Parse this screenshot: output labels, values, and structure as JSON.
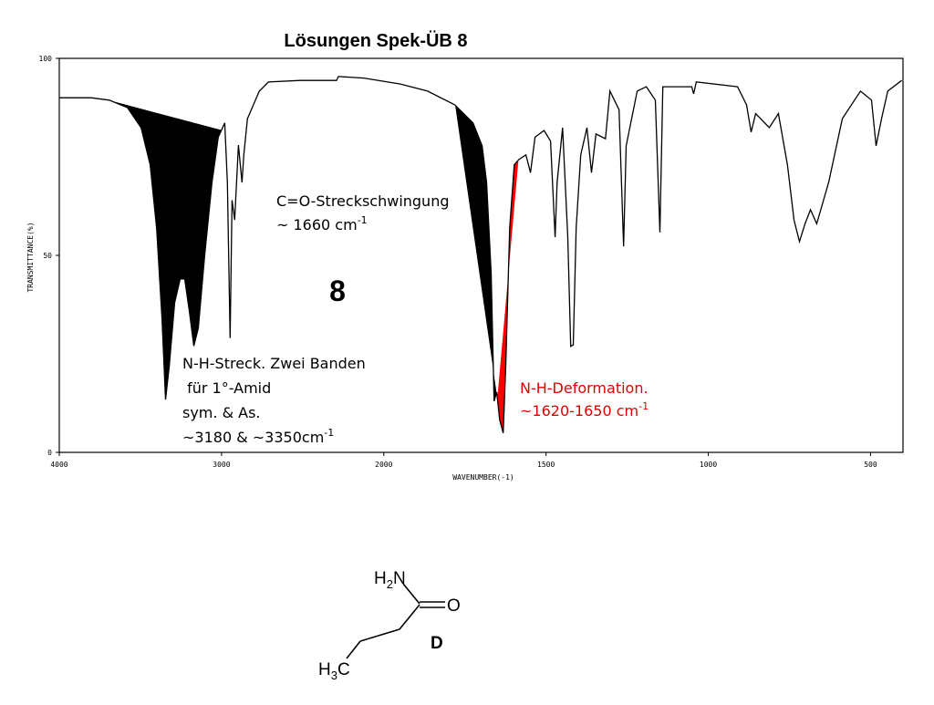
{
  "chart_data": {
    "type": "line",
    "title": "Lösungen Spek-ÜB 8",
    "xlabel": "WAVENUMBER(-1)",
    "ylabel": "TRANSMITTANCE(%)",
    "big_label": "8",
    "xlim": [
      4000,
      400
    ],
    "xticks": [
      4000,
      3000,
      2000,
      1500,
      1000,
      500
    ],
    "ylim": [
      0,
      100
    ],
    "yticks": [
      0,
      50,
      100
    ],
    "grid": false,
    "color": "#000000",
    "x": [
      4000,
      3804,
      3692,
      3580,
      3496,
      3440,
      3400,
      3367,
      3345,
      3322,
      3289,
      3255,
      3227,
      3199,
      3171,
      3143,
      3104,
      3059,
      3020,
      2980,
      2964,
      2947,
      2935,
      2919,
      2896,
      2874,
      2863,
      2840,
      2767,
      2711,
      2515,
      2291,
      2280,
      2123,
      1949,
      1865,
      1781,
      1725,
      1697,
      1683,
      1669,
      1660,
      1652,
      1643,
      1632,
      1624,
      1612,
      1598,
      1584,
      1562,
      1548,
      1534,
      1506,
      1486,
      1472,
      1466,
      1449,
      1433,
      1424,
      1416,
      1407,
      1393,
      1374,
      1360,
      1346,
      1317,
      1303,
      1275,
      1261,
      1253,
      1219,
      1191,
      1163,
      1149,
      1140,
      1051,
      1045,
      1037,
      910,
      882,
      868,
      854,
      812,
      784,
      756,
      736,
      719,
      702,
      685,
      666,
      629,
      587,
      531,
      497,
      483,
      466,
      447,
      404
    ],
    "values": [
      90,
      90,
      89.4,
      87.5,
      82.4,
      73,
      57,
      34,
      13.4,
      22,
      38,
      44,
      44,
      36,
      27,
      31.5,
      50,
      68.5,
      80,
      83.6,
      68.5,
      29,
      64,
      59,
      78,
      68.5,
      75.5,
      84.7,
      91.7,
      94,
      94.4,
      94.4,
      95.4,
      95,
      93.5,
      91.7,
      88.2,
      83.6,
      77.8,
      68.5,
      45.4,
      13,
      15.3,
      8.3,
      4.9,
      22,
      57,
      73,
      74.3,
      75.5,
      71,
      80,
      81.7,
      79,
      54.6,
      68.5,
      82.4,
      54.6,
      26.9,
      27.3,
      57,
      75.5,
      82.4,
      71,
      80.8,
      79.6,
      91.7,
      87,
      52.3,
      77.8,
      91.7,
      92.8,
      89.4,
      55.8,
      92.8,
      92.8,
      91,
      94,
      92.8,
      88.2,
      81.3,
      86,
      82.4,
      86,
      73,
      59,
      53.5,
      58,
      61.6,
      58,
      68.5,
      84.7,
      91.7,
      89.4,
      77.8,
      84.7,
      91.7,
      94.4
    ],
    "shaded_bands": [
      {
        "from": 3700,
        "to": 3000,
        "color": "#000000"
      },
      {
        "from": 1780,
        "to": 1650,
        "color": "#000000"
      },
      {
        "from": 1650,
        "to": 1585,
        "color": "#ff0000"
      }
    ],
    "annotations": [
      {
        "color": "#000000",
        "lines": [
          {
            "text": "C=O-Streckschwingung"
          },
          {
            "text": "~ 1660 cm",
            "sup": "-1"
          }
        ]
      },
      {
        "color": "#000000",
        "lines": [
          {
            "text": "N-H-Streck. Zwei Banden"
          },
          {
            "text": " für 1°-Amid"
          },
          {
            "text": "sym. & As."
          },
          {
            "text": "~3180 & ~3350cm",
            "sup": "-1"
          }
        ]
      },
      {
        "color": "#e00000",
        "lines": [
          {
            "text": "N-H-Deformation."
          },
          {
            "text": "~1620-1650 cm",
            "sup": "-1"
          }
        ]
      }
    ]
  },
  "molecule": {
    "amine": [
      "H",
      "2",
      "N"
    ],
    "oxygen": "O",
    "label": "D",
    "methyl": [
      "H",
      "3",
      "C"
    ]
  }
}
